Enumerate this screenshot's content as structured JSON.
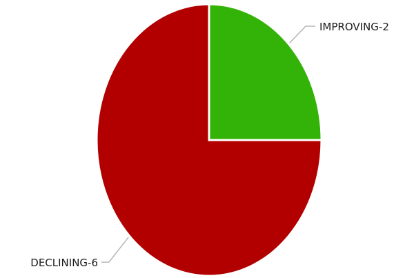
{
  "chart_data": {
    "type": "pie",
    "title": "",
    "slices": [
      {
        "label": "IMPROVING-2",
        "category": "IMPROVING",
        "value": 2,
        "color": "#33b207"
      },
      {
        "label": "DECLINING-6",
        "category": "DECLINING",
        "value": 6,
        "color": "#b20000"
      }
    ],
    "start_angle": "12 o'clock",
    "direction": "clockwise",
    "legend": "none",
    "label_style": "outside with leader lines"
  }
}
